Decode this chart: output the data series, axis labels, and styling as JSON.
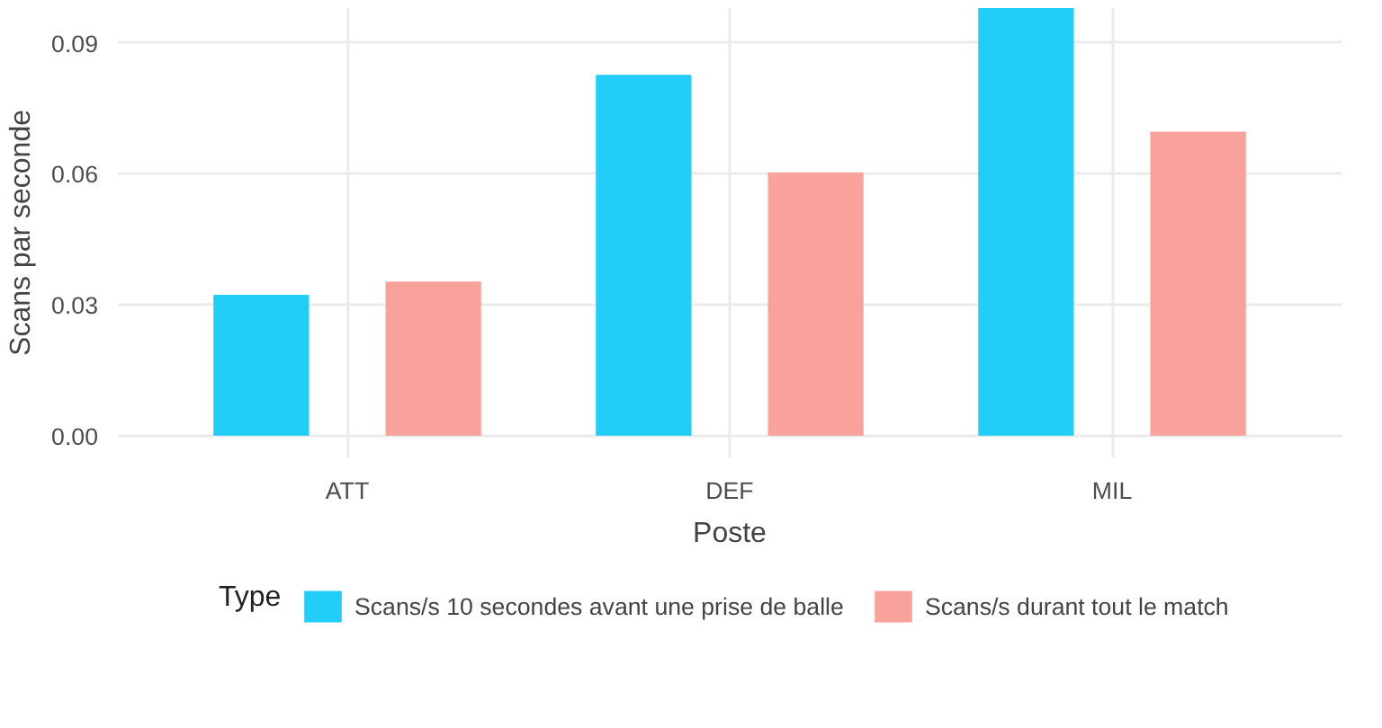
{
  "chart_data": {
    "type": "bar",
    "xlabel": "Poste",
    "ylabel": "Scans par seconde",
    "legend_title": "Type",
    "categories": [
      "ATT",
      "DEF",
      "MIL"
    ],
    "series": [
      {
        "name": "Scans/s 10 secondes avant une prise de balle",
        "color": "#22cdf8",
        "values": [
          0.0323,
          0.0827,
          0.098
        ]
      },
      {
        "name": "Scans/s durant tout le match",
        "color": "#f8a29b",
        "values": [
          0.0353,
          0.0603,
          0.0697
        ]
      }
    ],
    "ylim": [
      -0.005,
      0.098
    ],
    "yticks": [
      {
        "value": 0,
        "label": "0.00"
      },
      {
        "value": 0.03,
        "label": "0.03"
      },
      {
        "value": 0.06,
        "label": "0.06"
      },
      {
        "value": 0.09,
        "label": "0.09"
      }
    ],
    "grid": true,
    "legend": "bottom"
  }
}
